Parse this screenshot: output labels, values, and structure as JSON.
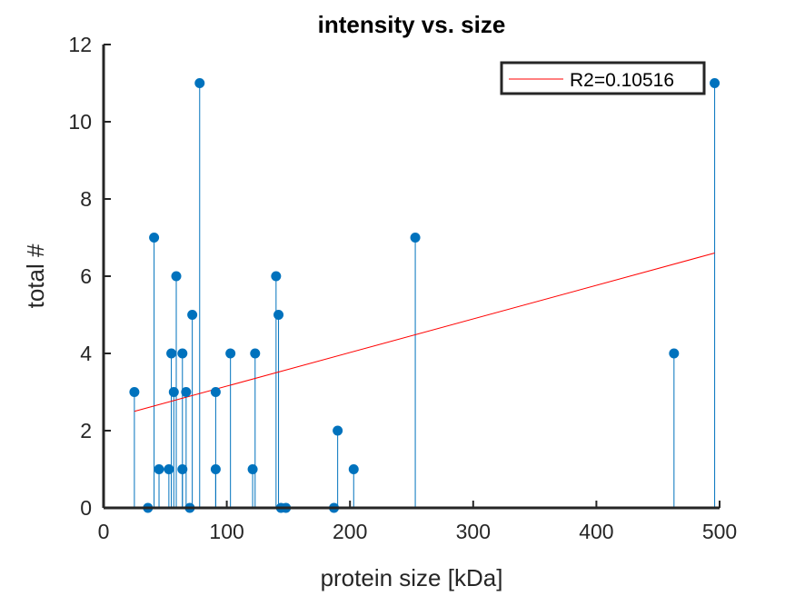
{
  "chart_data": {
    "type": "scatter",
    "title": "intensity vs. size",
    "xlabel": "protein size [kDa]",
    "ylabel": "total #",
    "xlim": [
      0,
      500
    ],
    "ylim": [
      0,
      12
    ],
    "xticks": [
      0,
      100,
      200,
      300,
      400,
      500
    ],
    "yticks": [
      0,
      2,
      4,
      6,
      8,
      10,
      12
    ],
    "grid": false,
    "legend_position": "top-right",
    "series": [
      {
        "style": "stem",
        "color": "#0072BD",
        "points": [
          {
            "x": 25,
            "y": 3
          },
          {
            "x": 36,
            "y": 0
          },
          {
            "x": 41,
            "y": 7
          },
          {
            "x": 45,
            "y": 1
          },
          {
            "x": 53,
            "y": 1
          },
          {
            "x": 55,
            "y": 4
          },
          {
            "x": 57,
            "y": 3
          },
          {
            "x": 59,
            "y": 6
          },
          {
            "x": 64,
            "y": 4
          },
          {
            "x": 64,
            "y": 1
          },
          {
            "x": 67,
            "y": 3
          },
          {
            "x": 70,
            "y": 0
          },
          {
            "x": 72,
            "y": 5
          },
          {
            "x": 78,
            "y": 11
          },
          {
            "x": 91,
            "y": 3
          },
          {
            "x": 91,
            "y": 1
          },
          {
            "x": 103,
            "y": 4
          },
          {
            "x": 121,
            "y": 1
          },
          {
            "x": 123,
            "y": 4
          },
          {
            "x": 140,
            "y": 6
          },
          {
            "x": 142,
            "y": 5
          },
          {
            "x": 144,
            "y": 0
          },
          {
            "x": 148,
            "y": 0
          },
          {
            "x": 187,
            "y": 0
          },
          {
            "x": 190,
            "y": 2
          },
          {
            "x": 203,
            "y": 1
          },
          {
            "x": 253,
            "y": 7
          },
          {
            "x": 463,
            "y": 4
          },
          {
            "x": 496,
            "y": 11
          }
        ]
      },
      {
        "name": "R2=0.10516",
        "style": "line",
        "color": "#FF0000",
        "points": [
          {
            "x": 25,
            "y": 2.5
          },
          {
            "x": 496,
            "y": 6.6
          }
        ]
      }
    ]
  }
}
